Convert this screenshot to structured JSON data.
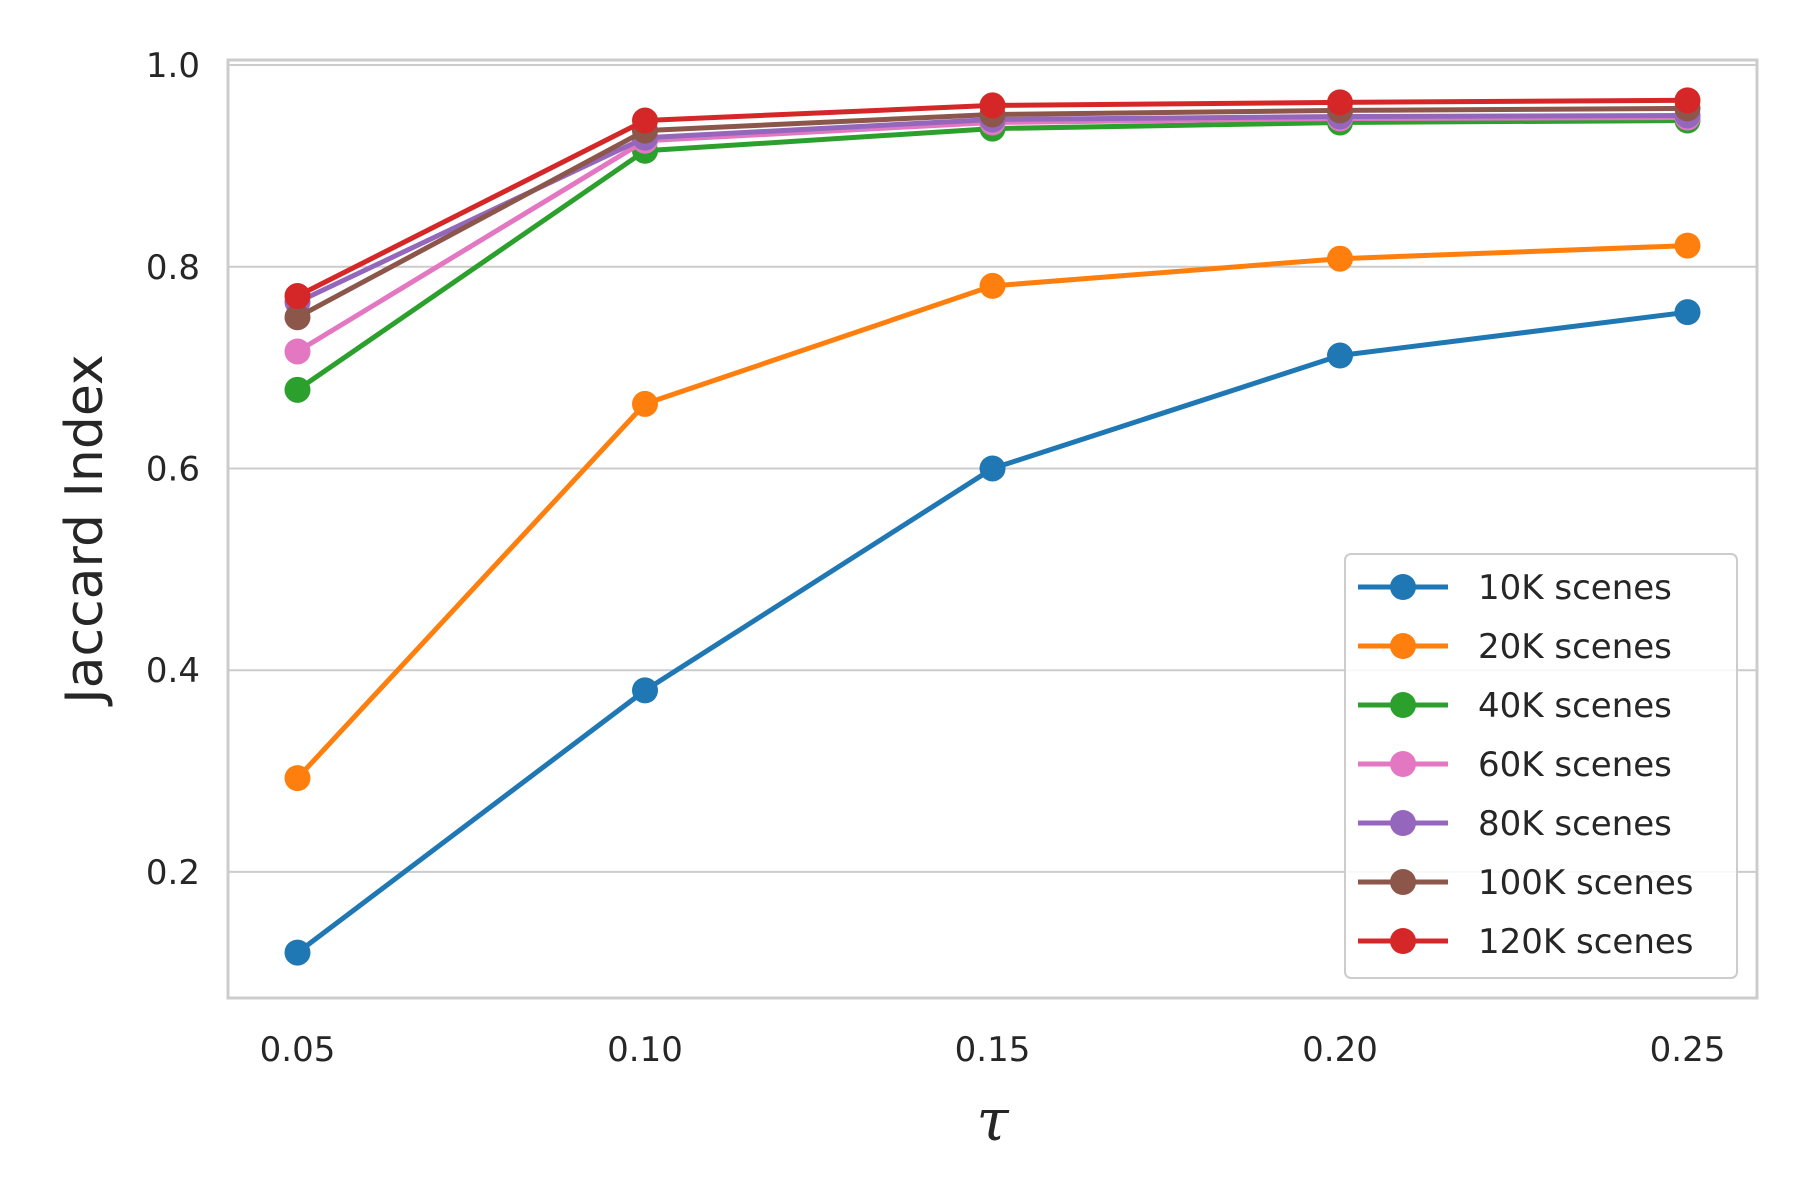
{
  "chart_data": {
    "type": "line",
    "title": "",
    "xlabel": "τ",
    "ylabel": "Jaccard Index",
    "x": [
      0.05,
      0.1,
      0.15,
      0.2,
      0.25
    ],
    "x_tick_labels": [
      "0.05",
      "0.10",
      "0.15",
      "0.20",
      "0.25"
    ],
    "y_ticks": [
      0.2,
      0.4,
      0.6,
      0.8,
      1.0
    ],
    "y_tick_labels": [
      "0.2",
      "0.4",
      "0.6",
      "0.8",
      "1.0"
    ],
    "xlim": [
      0.04,
      0.26
    ],
    "ylim": [
      0.075,
      1.005
    ],
    "grid": "horizontal",
    "legend_position": "lower-right",
    "series": [
      {
        "name": "10K scenes",
        "color": "#1f77b4",
        "values": [
          0.12,
          0.38,
          0.6,
          0.712,
          0.755
        ]
      },
      {
        "name": "20K scenes",
        "color": "#ff7f0e",
        "values": [
          0.293,
          0.664,
          0.781,
          0.808,
          0.821
        ]
      },
      {
        "name": "40K scenes",
        "color": "#2ca02c",
        "values": [
          0.678,
          0.915,
          0.937,
          0.943,
          0.945
        ]
      },
      {
        "name": "60K scenes",
        "color": "#e377c2",
        "values": [
          0.716,
          0.925,
          0.943,
          0.947,
          0.948
        ]
      },
      {
        "name": "80K scenes",
        "color": "#9467bd",
        "values": [
          0.765,
          0.928,
          0.946,
          0.949,
          0.95
        ]
      },
      {
        "name": "100K scenes",
        "color": "#8c564b",
        "values": [
          0.75,
          0.935,
          0.951,
          0.955,
          0.957
        ]
      },
      {
        "name": "120K scenes",
        "color": "#d62728",
        "values": [
          0.771,
          0.945,
          0.96,
          0.963,
          0.965
        ]
      }
    ]
  }
}
